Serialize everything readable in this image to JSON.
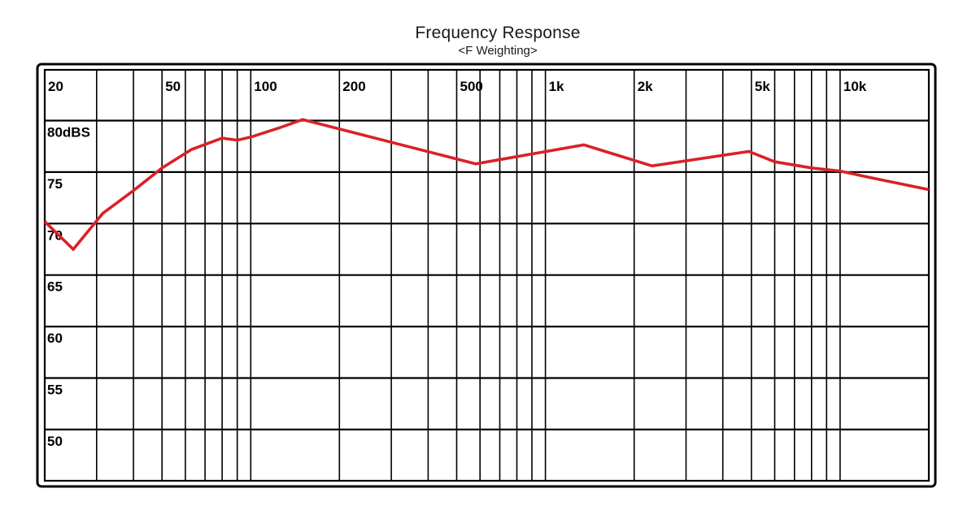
{
  "header": {
    "title": "Frequency Response",
    "subtitle": "<F Weighting>"
  },
  "colors": {
    "grid": "#000000",
    "curve": "#da2128",
    "background": "#ffffff",
    "text": "#1a1a1a"
  },
  "chart_data": {
    "type": "line",
    "title": "Frequency Response",
    "subtitle": "<F Weighting>",
    "x_scale": "log",
    "x_range_hz": [
      20,
      20000
    ],
    "y_visible_range_db": [
      45,
      85
    ],
    "grid": true,
    "legend": "none",
    "x_ticks": [
      {
        "f": 20,
        "label": "20"
      },
      {
        "f": 50,
        "label": "50"
      },
      {
        "f": 100,
        "label": "100"
      },
      {
        "f": 200,
        "label": "200"
      },
      {
        "f": 500,
        "label": "500"
      },
      {
        "f": 1000,
        "label": "1k"
      },
      {
        "f": 2000,
        "label": "2k"
      },
      {
        "f": 5000,
        "label": "5k"
      },
      {
        "f": 10000,
        "label": "10k"
      }
    ],
    "y_ticks": [
      {
        "db": 80,
        "label": "80dBS"
      },
      {
        "db": 75,
        "label": "75"
      },
      {
        "db": 70,
        "label": "70"
      },
      {
        "db": 65,
        "label": "65"
      },
      {
        "db": 60,
        "label": "60"
      },
      {
        "db": 55,
        "label": "55"
      },
      {
        "db": 50,
        "label": "50"
      }
    ],
    "x_gridlines_hz": [
      20,
      30,
      40,
      50,
      60,
      70,
      80,
      90,
      100,
      200,
      300,
      400,
      500,
      600,
      700,
      800,
      900,
      1000,
      2000,
      3000,
      4000,
      5000,
      6000,
      7000,
      8000,
      9000,
      10000
    ],
    "y_gridlines_db": [
      80,
      75,
      70,
      65,
      60,
      55,
      50
    ],
    "series": [
      {
        "name": "frequency-response",
        "color": "#da2128",
        "points_hz_db": [
          [
            20,
            70.2
          ],
          [
            25,
            67.5
          ],
          [
            31.5,
            71.0
          ],
          [
            40,
            73.2
          ],
          [
            50,
            75.4
          ],
          [
            63,
            77.2
          ],
          [
            80,
            78.3
          ],
          [
            90,
            78.1
          ],
          [
            100,
            78.4
          ],
          [
            125,
            79.3
          ],
          [
            150,
            80.1
          ],
          [
            580,
            75.8
          ],
          [
            1350,
            77.65
          ],
          [
            2300,
            75.6
          ],
          [
            4900,
            77.0
          ],
          [
            6000,
            76.0
          ],
          [
            8000,
            75.4
          ],
          [
            10000,
            75.1
          ],
          [
            12500,
            74.5
          ],
          [
            20000,
            73.3
          ]
        ]
      }
    ]
  }
}
